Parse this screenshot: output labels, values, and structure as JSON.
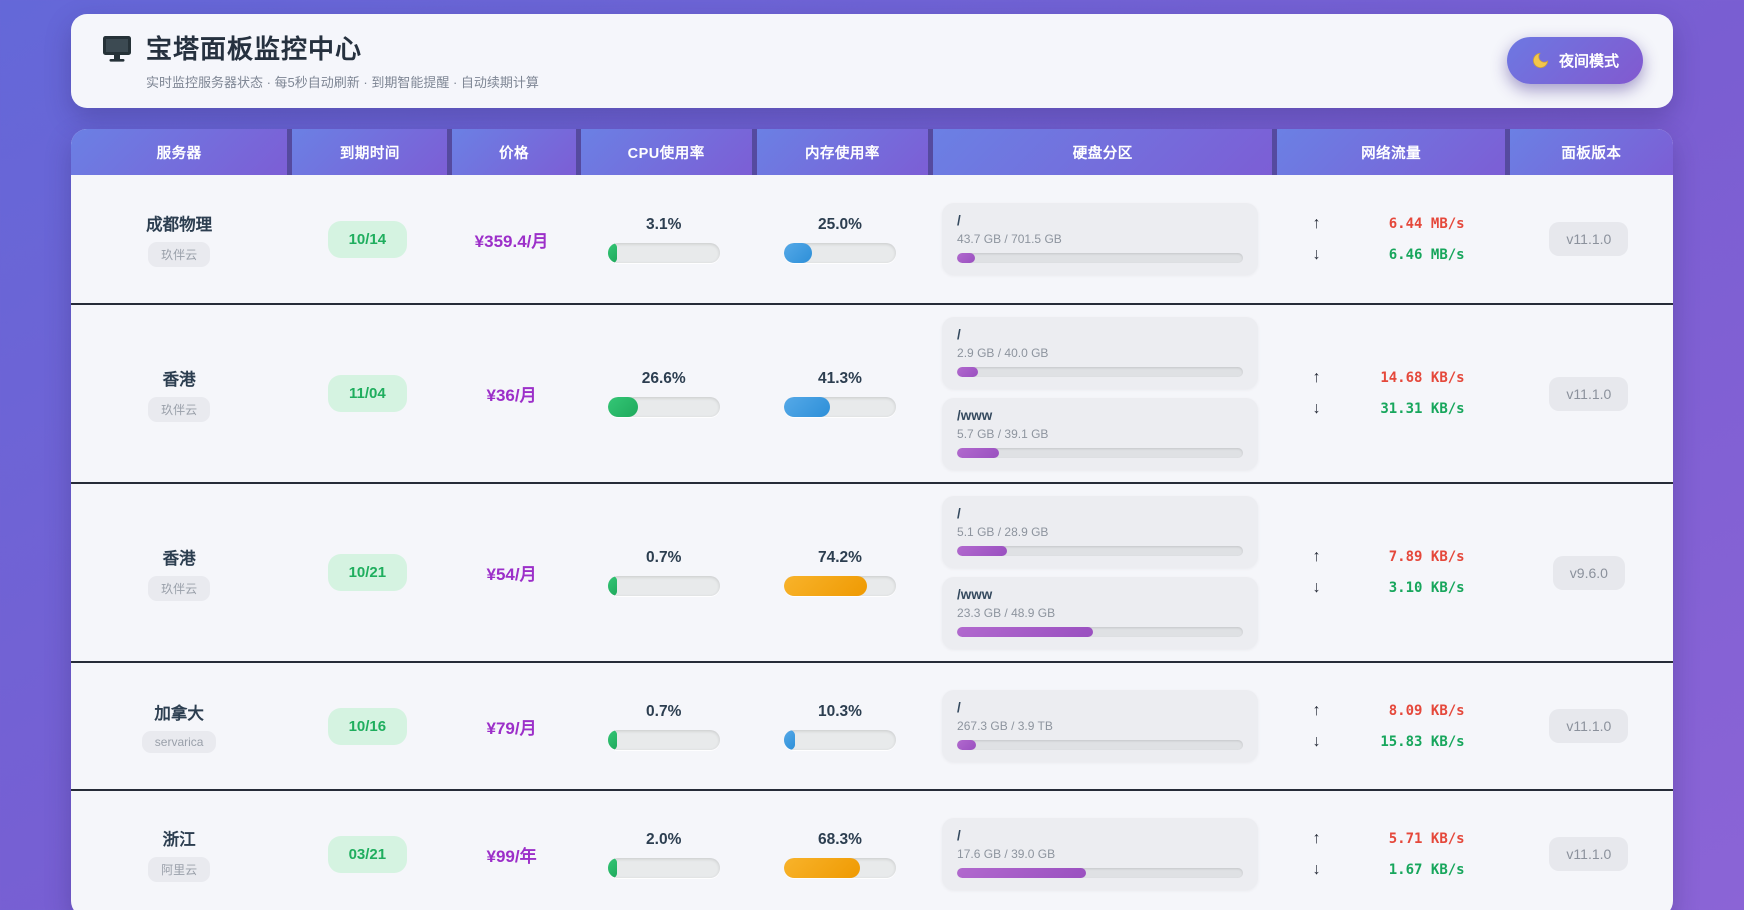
{
  "header": {
    "title": "宝塔面板监控中心",
    "subtitle": "实时监控服务器状态 · 每5秒自动刷新 · 到期智能提醒 · 自动续期计算",
    "night_mode_label": "夜间模式",
    "monitor_icon": "monitor-icon",
    "moon_icon": "moon-icon"
  },
  "colors": {
    "accent_purple": "#7c5ed5",
    "price_purple": "#9c2fc9",
    "expiry_green": "#1fae5e",
    "cpu_green": "#1fa95c",
    "memory_blue": "#2d8fd8",
    "memory_orange": "#ef9a02",
    "disk_purple": "#9a50c0",
    "upload_red": "#e5483b",
    "download_green": "#17a65c"
  },
  "table": {
    "columns": [
      "服务器",
      "到期时间",
      "价格",
      "CPU使用率",
      "内存使用率",
      "硬盘分区",
      "网络流量",
      "面板版本"
    ],
    "net_up_arrow": "↑",
    "net_down_arrow": "↓",
    "rows": [
      {
        "name": "成都物理",
        "provider": "玖伴云",
        "expiry": "10/14",
        "price": "¥359.4/月",
        "cpu": {
          "label": "3.1%",
          "percent": 3.1
        },
        "memory": {
          "label": "25.0%",
          "percent": 25.0,
          "color": "blue"
        },
        "disks": [
          {
            "mount": "/",
            "usage": "43.7 GB / 701.5 GB",
            "percent": 6.2
          }
        ],
        "network": {
          "up": "6.44 MB/s",
          "down": "6.46 MB/s"
        },
        "version": "v11.1.0"
      },
      {
        "name": "香港",
        "provider": "玖伴云",
        "expiry": "11/04",
        "price": "¥36/月",
        "cpu": {
          "label": "26.6%",
          "percent": 26.6
        },
        "memory": {
          "label": "41.3%",
          "percent": 41.3,
          "color": "blue"
        },
        "disks": [
          {
            "mount": "/",
            "usage": "2.9 GB / 40.0 GB",
            "percent": 7.2
          },
          {
            "mount": "/www",
            "usage": "5.7 GB / 39.1 GB",
            "percent": 14.6
          }
        ],
        "network": {
          "up": "14.68 KB/s",
          "down": "31.31 KB/s"
        },
        "version": "v11.1.0"
      },
      {
        "name": "香港",
        "provider": "玖伴云",
        "expiry": "10/21",
        "price": "¥54/月",
        "cpu": {
          "label": "0.7%",
          "percent": 0.7
        },
        "memory": {
          "label": "74.2%",
          "percent": 74.2,
          "color": "orange"
        },
        "disks": [
          {
            "mount": "/",
            "usage": "5.1 GB / 28.9 GB",
            "percent": 17.6
          },
          {
            "mount": "/www",
            "usage": "23.3 GB / 48.9 GB",
            "percent": 47.6
          }
        ],
        "network": {
          "up": "7.89 KB/s",
          "down": "3.10 KB/s"
        },
        "version": "v9.6.0"
      },
      {
        "name": "加拿大",
        "provider": "servarica",
        "expiry": "10/16",
        "price": "¥79/月",
        "cpu": {
          "label": "0.7%",
          "percent": 0.7
        },
        "memory": {
          "label": "10.3%",
          "percent": 10.3,
          "color": "blue"
        },
        "disks": [
          {
            "mount": "/",
            "usage": "267.3 GB / 3.9 TB",
            "percent": 6.7
          }
        ],
        "network": {
          "up": "8.09 KB/s",
          "down": "15.83 KB/s"
        },
        "version": "v11.1.0"
      },
      {
        "name": "浙江",
        "provider": "阿里云",
        "expiry": "03/21",
        "price": "¥99/年",
        "cpu": {
          "label": "2.0%",
          "percent": 2.0
        },
        "memory": {
          "label": "68.3%",
          "percent": 68.3,
          "color": "orange"
        },
        "disks": [
          {
            "mount": "/",
            "usage": "17.6 GB / 39.0 GB",
            "percent": 45.1
          }
        ],
        "network": {
          "up": "5.71 KB/s",
          "down": "1.67 KB/s"
        },
        "version": "v11.1.0"
      }
    ]
  }
}
